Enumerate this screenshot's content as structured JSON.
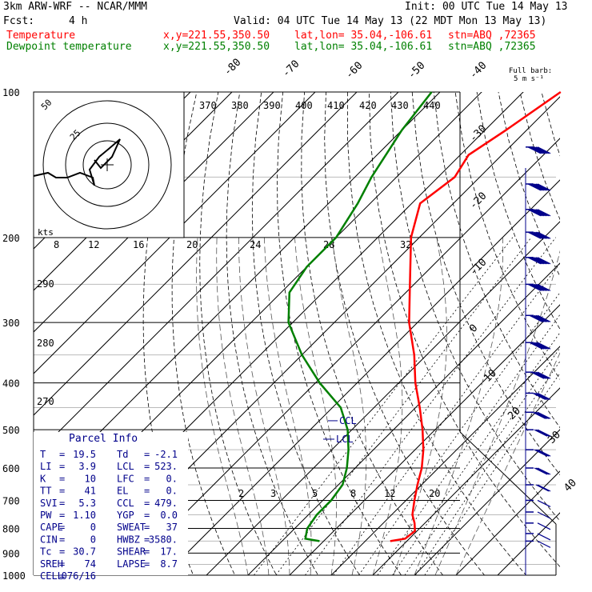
{
  "header": {
    "model": "3km ARW-WRF -- NCAR/MMM",
    "init": "Init: 00 UTC Tue 14 May 13",
    "fcst_label": "Fcst:",
    "fcst_value": "4 h",
    "valid": "Valid: 04 UTC Tue 14 May 13 (22 MDT Mon 13 May 13)",
    "temp_label": "Temperature",
    "dew_label": "Dewpoint temperature",
    "xy": "x,y=221.55,350.50",
    "latlon": "lat,lon= 35.04,-106.61",
    "stn": "stn=ABQ ,72365",
    "full_barb": "Full barb:",
    "full_barb_val": "5 m s⁻¹"
  },
  "colors": {
    "temperature": "#ff0000",
    "dewpoint": "#008000",
    "wind": "#00008b",
    "header_temp": "#ff0000",
    "header_dew": "#008000"
  },
  "parcel_info": {
    "title": "Parcel Info",
    "rows": [
      [
        "T",
        "19.5",
        "Td",
        "-2.1"
      ],
      [
        "LI",
        "3.9",
        "LCL",
        "523."
      ],
      [
        "K",
        "10",
        "LFC",
        "0."
      ],
      [
        "TT",
        "41",
        "EL",
        "0."
      ],
      [
        "SVI",
        "5.3",
        "CCL",
        "479."
      ],
      [
        "PW",
        "1.10",
        "YGP",
        "0.0"
      ],
      [
        "CAPE",
        "0",
        "SWEAT",
        "37"
      ],
      [
        "CIN",
        "0",
        "HWBZ",
        "3580."
      ],
      [
        "Tc",
        "30.7",
        "SHEAR",
        "17."
      ],
      [
        "SREH",
        "74",
        "LAPSE",
        "8.7"
      ],
      [
        "CELL",
        "076/16",
        "",
        ""
      ]
    ]
  },
  "hodograph": {
    "kts_label": "kts",
    "ring_labels": [
      "25",
      "50"
    ]
  },
  "chart_data": {
    "type": "line",
    "title": "",
    "ylabel": "",
    "y_scale": "log-pressure",
    "ylim": [
      1000,
      100
    ],
    "pressure_ticks": [
      100,
      200,
      300,
      400,
      500,
      600,
      700,
      800,
      900,
      1000
    ],
    "isotherm_labels": [
      "-80",
      "-70",
      "-60",
      "-50",
      "-40",
      "-30",
      "-20",
      "-10",
      "0",
      "10",
      "20",
      "30",
      "40"
    ],
    "theta_labels_top": [
      "370",
      "380",
      "390",
      "400",
      "410",
      "420",
      "430",
      "440"
    ],
    "theta_labels_left": [
      "290",
      "280",
      "270"
    ],
    "mixing_ratio_labels_top": [
      "8",
      "12",
      "16",
      "20",
      "24",
      "28",
      "32"
    ],
    "mixing_ratio_labels_low": [
      "2",
      "3",
      "5",
      "8",
      "12",
      "20"
    ],
    "lcl_label": "LCL",
    "ccl_label": "CCL",
    "series": [
      {
        "name": "Temperature",
        "color": "#ff0000",
        "points": [
          [
            100,
            -51
          ],
          [
            120,
            -55
          ],
          [
            135,
            -58
          ],
          [
            150,
            -56
          ],
          [
            170,
            -58
          ],
          [
            200,
            -52
          ],
          [
            250,
            -41
          ],
          [
            300,
            -32
          ],
          [
            350,
            -23
          ],
          [
            400,
            -16
          ],
          [
            450,
            -9
          ],
          [
            500,
            -3
          ],
          [
            550,
            2
          ],
          [
            600,
            6
          ],
          [
            650,
            9
          ],
          [
            700,
            12
          ],
          [
            750,
            15
          ],
          [
            780,
            17.5
          ],
          [
            810,
            19.5
          ],
          [
            840,
            19
          ],
          [
            850,
            16
          ]
        ]
      },
      {
        "name": "Dewpoint temperature",
        "color": "#008000",
        "points": [
          [
            100,
            -82
          ],
          [
            120,
            -80
          ],
          [
            150,
            -76
          ],
          [
            170,
            -73
          ],
          [
            200,
            -70
          ],
          [
            230,
            -70
          ],
          [
            260,
            -68
          ],
          [
            300,
            -61
          ],
          [
            350,
            -50
          ],
          [
            400,
            -39
          ],
          [
            450,
            -28
          ],
          [
            500,
            -21
          ],
          [
            550,
            -16
          ],
          [
            600,
            -12
          ],
          [
            650,
            -9
          ],
          [
            700,
            -8
          ],
          [
            750,
            -8
          ],
          [
            800,
            -7
          ],
          [
            840,
            -5
          ],
          [
            850,
            -1
          ]
        ]
      }
    ],
    "wind_barbs": [
      [
        130,
        70
      ],
      [
        155,
        72
      ],
      [
        175,
        74
      ],
      [
        195,
        73
      ],
      [
        220,
        70
      ],
      [
        250,
        67
      ],
      [
        290,
        62
      ],
      [
        330,
        57
      ],
      [
        380,
        51
      ],
      [
        420,
        44
      ],
      [
        460,
        39
      ],
      [
        500,
        34
      ],
      [
        550,
        31
      ],
      [
        600,
        27
      ],
      [
        650,
        19
      ],
      [
        700,
        12
      ],
      [
        740,
        9
      ],
      [
        780,
        8
      ],
      [
        820,
        9
      ],
      [
        850,
        7
      ]
    ]
  }
}
